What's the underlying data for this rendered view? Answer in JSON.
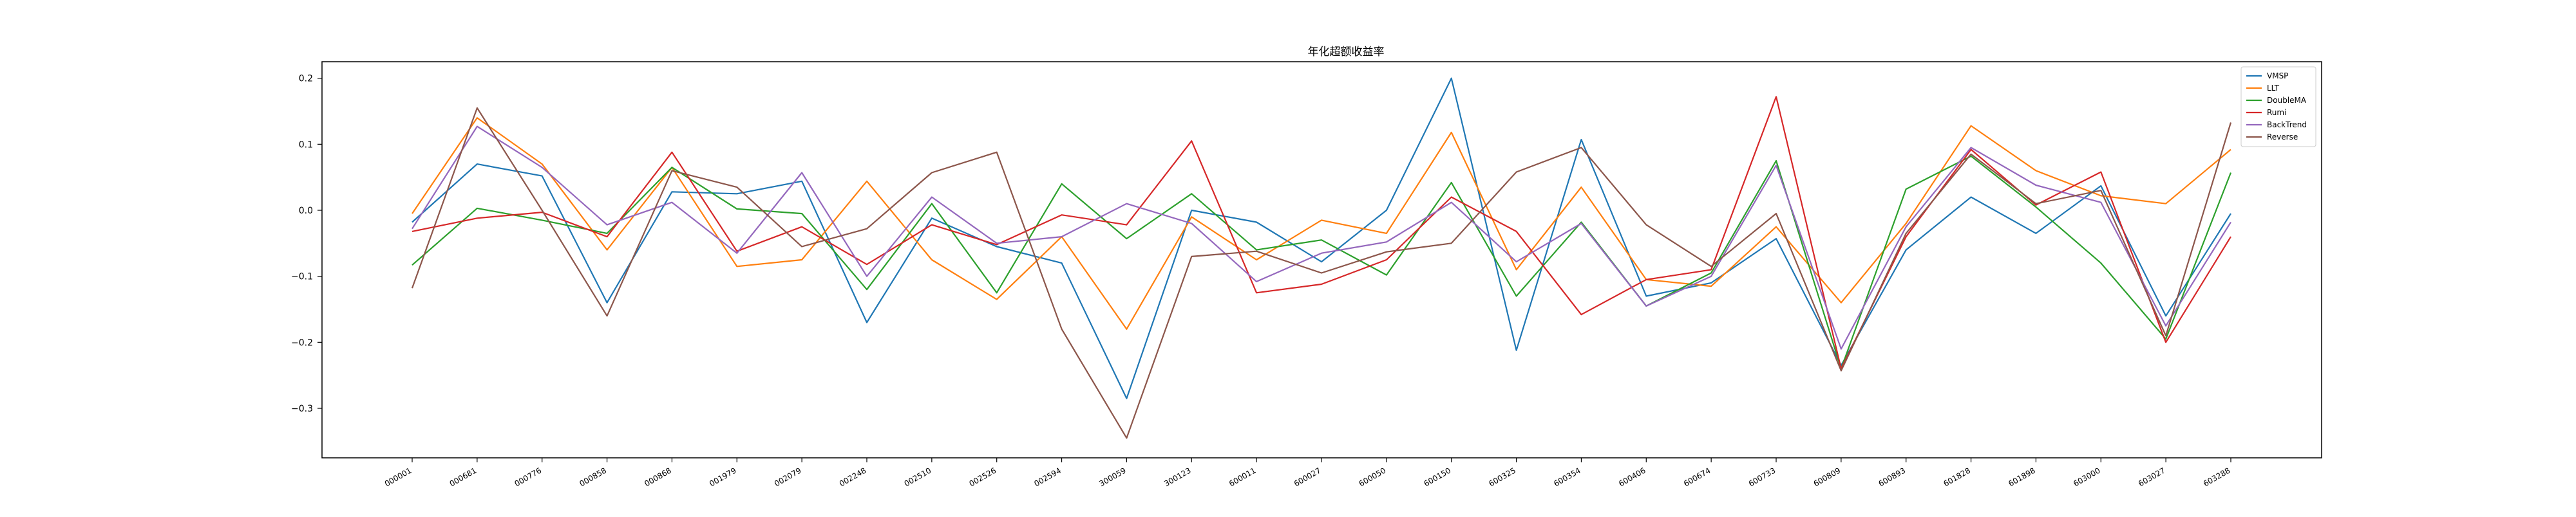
{
  "chart_data": {
    "type": "line",
    "title": "年化超额收益率",
    "xlabel": "",
    "ylabel": "",
    "ylim": [
      -0.375,
      0.225
    ],
    "yticks": [
      0.2,
      0.1,
      0.0,
      -0.1,
      -0.2,
      -0.3
    ],
    "ytick_labels": [
      "0.2",
      "0.1",
      "0.0",
      "−0.1",
      "−0.2",
      "−0.3"
    ],
    "grid": false,
    "legend_position": "top-right",
    "categories": [
      "000001",
      "000681",
      "000776",
      "000858",
      "000868",
      "001979",
      "002079",
      "002248",
      "002510",
      "002526",
      "002594",
      "300059",
      "300123",
      "600011",
      "600027",
      "600050",
      "600150",
      "600325",
      "600354",
      "600406",
      "600674",
      "600733",
      "600809",
      "600893",
      "601828",
      "601898",
      "603000",
      "603027",
      "603288"
    ],
    "series": [
      {
        "name": "VMSP",
        "color": "#1f77b4",
        "values": [
          -0.018,
          0.07,
          0.052,
          -0.14,
          0.028,
          0.025,
          0.044,
          -0.17,
          -0.012,
          -0.055,
          -0.08,
          -0.285,
          0.0,
          -0.018,
          -0.078,
          0.0,
          0.2,
          -0.212,
          0.107,
          -0.13,
          -0.11,
          -0.043,
          -0.235,
          -0.06,
          0.02,
          -0.035,
          0.037,
          -0.16,
          -0.005
        ]
      },
      {
        "name": "LLT",
        "color": "#ff7f0e",
        "values": [
          -0.005,
          0.14,
          0.07,
          -0.06,
          0.065,
          -0.085,
          -0.075,
          0.044,
          -0.075,
          -0.135,
          -0.04,
          -0.18,
          -0.01,
          -0.075,
          -0.015,
          -0.035,
          0.118,
          -0.09,
          0.035,
          -0.105,
          -0.115,
          -0.025,
          -0.14,
          -0.02,
          0.128,
          0.06,
          0.022,
          0.01,
          0.092
        ]
      },
      {
        "name": "DoubleMA",
        "color": "#2ca02c",
        "values": [
          -0.083,
          0.003,
          -0.015,
          -0.035,
          0.065,
          0.002,
          -0.005,
          -0.12,
          0.01,
          -0.125,
          0.04,
          -0.043,
          0.025,
          -0.06,
          -0.045,
          -0.098,
          0.042,
          -0.13,
          -0.018,
          -0.145,
          -0.095,
          0.075,
          -0.24,
          0.032,
          0.082,
          0.005,
          -0.08,
          -0.195,
          0.057
        ]
      },
      {
        "name": "Rumi",
        "color": "#d62728",
        "values": [
          -0.032,
          -0.012,
          -0.003,
          -0.04,
          0.088,
          -0.062,
          -0.025,
          -0.082,
          -0.022,
          -0.052,
          -0.007,
          -0.022,
          0.105,
          -0.125,
          -0.112,
          -0.075,
          0.02,
          -0.032,
          -0.158,
          -0.105,
          -0.09,
          0.172,
          -0.24,
          -0.04,
          0.092,
          0.008,
          0.058,
          -0.2,
          -0.04
        ]
      },
      {
        "name": "BackTrend",
        "color": "#9467bd",
        "values": [
          -0.028,
          0.127,
          0.065,
          -0.022,
          0.012,
          -0.065,
          0.057,
          -0.1,
          0.02,
          -0.05,
          -0.04,
          0.01,
          -0.02,
          -0.108,
          -0.065,
          -0.048,
          0.012,
          -0.078,
          -0.02,
          -0.145,
          -0.1,
          0.068,
          -0.21,
          -0.025,
          0.095,
          0.038,
          0.012,
          -0.175,
          -0.018
        ]
      },
      {
        "name": "Reverse",
        "color": "#8c564b",
        "values": [
          -0.118,
          0.155,
          0.0,
          -0.16,
          0.06,
          0.035,
          -0.055,
          -0.028,
          0.057,
          0.088,
          -0.18,
          -0.345,
          -0.07,
          -0.062,
          -0.095,
          -0.063,
          -0.05,
          0.058,
          0.095,
          -0.022,
          -0.085,
          -0.005,
          -0.243,
          -0.035,
          0.085,
          0.01,
          0.03,
          -0.19,
          0.133
        ]
      }
    ]
  }
}
